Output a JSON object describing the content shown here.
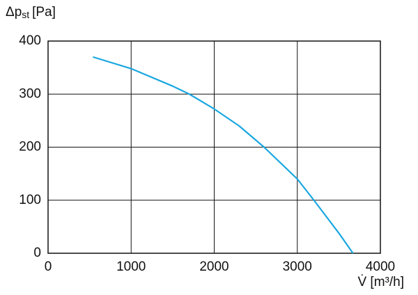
{
  "chart_data": {
    "type": "line",
    "y_label": {
      "symbol": "Δp",
      "subscript": "st",
      "unit": "[Pa]"
    },
    "x_label": "V̇ [m³/h]",
    "x": [
      540,
      1000,
      1500,
      1700,
      2000,
      2300,
      2600,
      3000,
      3200,
      3500,
      3670
    ],
    "series": [
      {
        "color": "#1aa7e0",
        "values": [
          370,
          348,
          315,
          300,
          272,
          240,
          200,
          140,
          100,
          38,
          0
        ]
      }
    ],
    "xlim": [
      0,
      4000
    ],
    "xticks": [
      0,
      1000,
      2000,
      3000,
      4000
    ],
    "ylim": [
      0,
      400
    ],
    "yticks": [
      0,
      100,
      200,
      300,
      400
    ],
    "grid": true
  }
}
